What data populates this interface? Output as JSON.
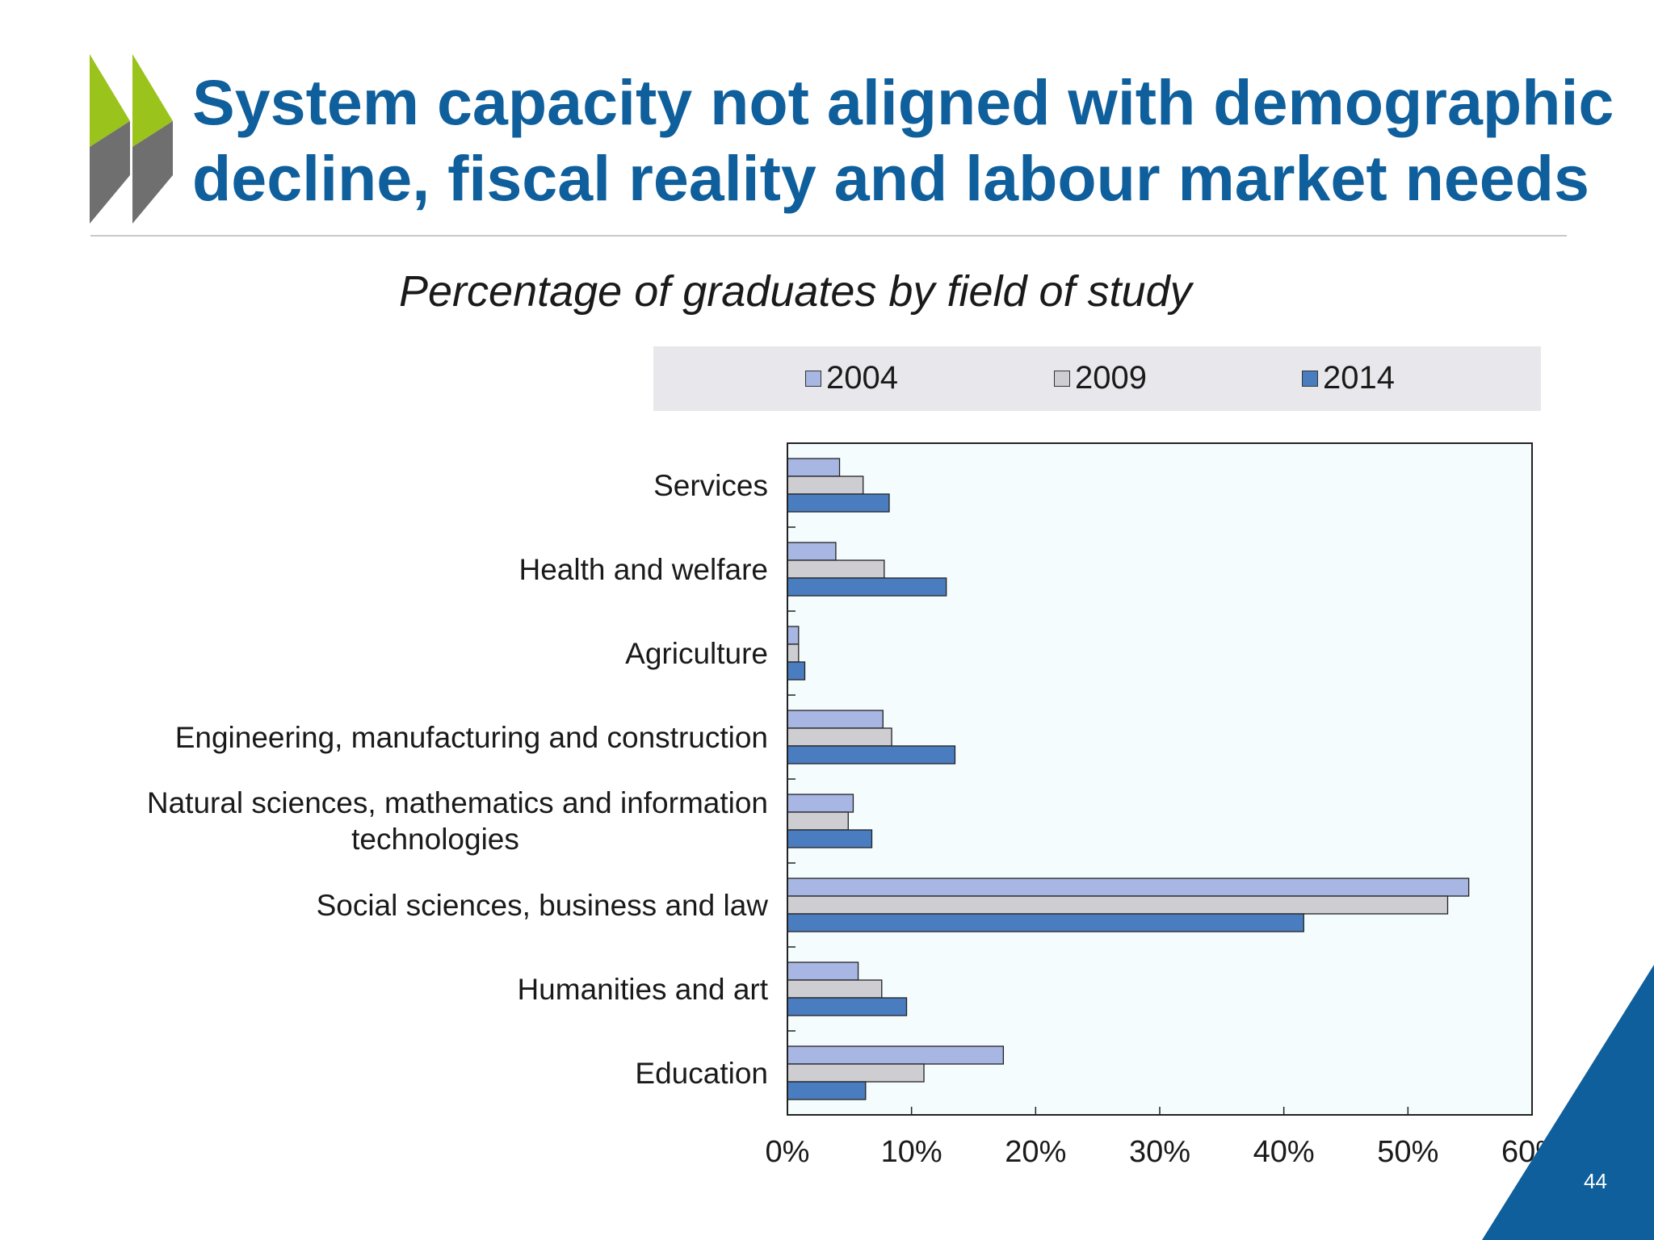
{
  "slide": {
    "title": "System capacity not aligned with demographic decline, fiscal reality and labour market needs",
    "page_number": "44",
    "colors": {
      "title": "#0e5f9c",
      "accent_green": "#9ac31c",
      "corner": "#0e5f9c"
    }
  },
  "chart_data": {
    "type": "bar",
    "orientation": "horizontal",
    "title": "Percentage of graduates by field of study",
    "categories": [
      "Services",
      "Health and welfare",
      "Agriculture",
      "Engineering, manufacturing and construction",
      "Natural sciences, mathematics and information technologies",
      "Social sciences, business and law",
      "Humanities and art",
      "Education"
    ],
    "series": [
      {
        "name": "2004",
        "color": "#a7b6e2",
        "values": [
          4.2,
          3.9,
          0.9,
          7.7,
          5.3,
          54.9,
          5.7,
          17.4
        ]
      },
      {
        "name": "2009",
        "color": "#cdcdd2",
        "values": [
          6.1,
          7.8,
          0.9,
          8.4,
          4.9,
          53.2,
          7.6,
          11.0
        ]
      },
      {
        "name": "2014",
        "color": "#4a7cc0",
        "values": [
          8.2,
          12.8,
          1.4,
          13.5,
          6.8,
          41.6,
          9.6,
          6.3
        ]
      }
    ],
    "xlim": [
      0,
      60
    ],
    "xticks": [
      "0%",
      "10%",
      "20%",
      "30%",
      "40%",
      "50%",
      "60%"
    ],
    "xlabel": "",
    "ylabel": "",
    "legend_position": "top",
    "grid": false
  }
}
